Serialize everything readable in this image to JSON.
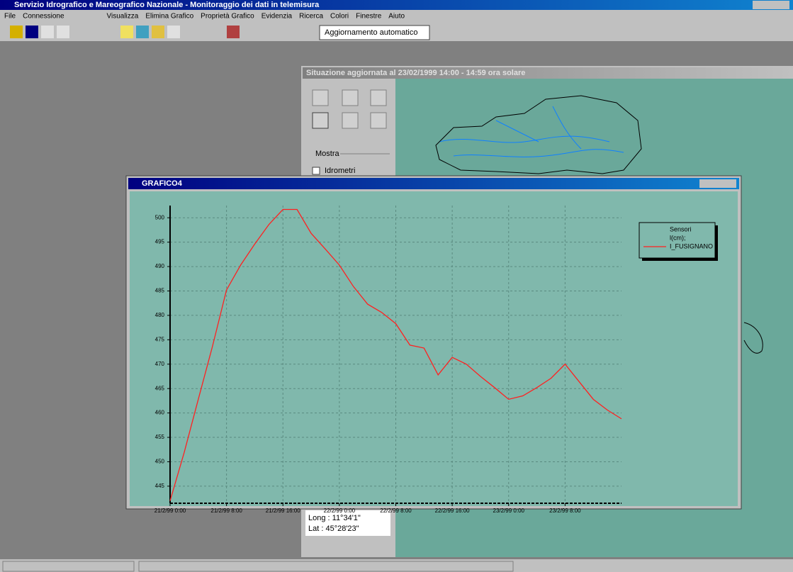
{
  "app": {
    "title": "Servizio Idrografico e Mareografico Nazionale - Monitoraggio dei dati in telemisura",
    "menu": [
      "File",
      "Connessione",
      "Visualizza",
      "Elimina Grafico",
      "Proprietà Grafico",
      "Evidenzia",
      "Ricerca",
      "Colori",
      "Finestre",
      "Aiuto"
    ],
    "auto_update": "Aggiornamento automatico",
    "map_window": {
      "title": "Situazione aggiornata al 23/02/1999 14:00 - 14:59 ora solare",
      "show": "Mostra",
      "hydrometers": "Idrometri",
      "long": "Long : 11°34'1\"",
      "lat": "Lat : 45°28'23\""
    },
    "chart_window": {
      "title": "GRAFICO4"
    }
  },
  "chart_data": {
    "type": "line",
    "legend_title": "Sensori",
    "legend_subtitle": "l(cm);",
    "x": [
      "21/2/99 0:00",
      "21/2/99 2:00",
      "21/2/99 4:00",
      "21/2/99 6:00",
      "21/2/99 8:00",
      "21/2/99 10:00",
      "21/2/99 12:00",
      "21/2/99 14:00",
      "21/2/99 16:00",
      "21/2/99 18:00",
      "21/2/99 20:00",
      "21/2/99 22:00",
      "22/2/99 0:00",
      "22/2/99 2:00",
      "22/2/99 4:00",
      "22/2/99 6:00",
      "22/2/99 8:00",
      "22/2/99 10:00",
      "22/2/99 12:00",
      "22/2/99 14:00",
      "22/2/99 16:00",
      "22/2/99 18:00",
      "22/2/99 20:00",
      "22/2/99 22:00",
      "23/2/99 0:00",
      "23/2/99 2:00",
      "23/2/99 4:00",
      "23/2/99 6:00",
      "23/2/99 8:00",
      "23/2/99 10:00",
      "23/2/99 12:00",
      "23/2/99 14:00",
      "23/2/99 16:00"
    ],
    "series": [
      {
        "name": "I_FUSIGNANO",
        "color": "#ff2020",
        "values": [
          442.0,
          451.9,
          462.8,
          473.6,
          485.2,
          490.3,
          494.6,
          498.6,
          501.7,
          501.7,
          496.8,
          493.6,
          490.3,
          485.9,
          482.3,
          480.6,
          478.3,
          473.9,
          473.3,
          467.8,
          471.4,
          470.0,
          467.5,
          465.2,
          462.8,
          463.5,
          465.2,
          467.1,
          470.0,
          466.4,
          462.8,
          460.6,
          458.8
        ]
      }
    ],
    "xlim": [
      "21/2/99 0:00",
      "23/2/99 16:00"
    ],
    "xticks": [
      "21/2/99 0:00",
      "21/2/99 8:00",
      "21/2/99 16:00",
      "22/2/99 0:00",
      "22/2/99 8:00",
      "22/2/99 16:00",
      "23/2/99 0:00",
      "23/2/99 8:00"
    ],
    "ylim": [
      441.5,
      502.5
    ],
    "yticks": [
      445,
      450,
      455,
      460,
      465,
      470,
      475,
      480,
      485,
      490,
      495,
      500
    ],
    "grid": true
  }
}
